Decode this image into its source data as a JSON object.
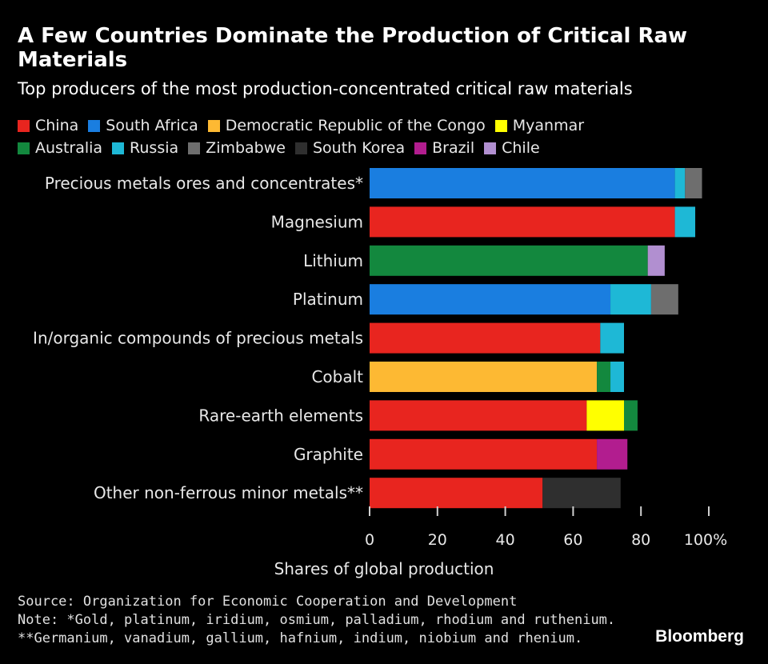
{
  "title": "A Few Countries Dominate the Production of Critical Raw Materials",
  "subtitle": "Top producers of the most production-concentrated critical raw materials",
  "legend": [
    [
      {
        "key": "china",
        "label": "China",
        "color": "#e8251f"
      },
      {
        "key": "south_africa",
        "label": "South Africa",
        "color": "#1a7ee0"
      },
      {
        "key": "drc",
        "label": "Democratic Republic of the Congo",
        "color": "#fdb933"
      },
      {
        "key": "myanmar",
        "label": "Myanmar",
        "color": "#ffff00"
      }
    ],
    [
      {
        "key": "australia",
        "label": "Australia",
        "color": "#13883e"
      },
      {
        "key": "russia",
        "label": "Russia",
        "color": "#1eb8d6"
      },
      {
        "key": "zimbabwe",
        "label": "Zimbabwe",
        "color": "#6e6e6e"
      },
      {
        "key": "south_korea",
        "label": "South Korea",
        "color": "#2f2f2f"
      },
      {
        "key": "brazil",
        "label": "Brazil",
        "color": "#b21d8f"
      },
      {
        "key": "chile",
        "label": "Chile",
        "color": "#b18fd0"
      }
    ]
  ],
  "chart_data": {
    "type": "bar",
    "orientation": "horizontal",
    "stacked": true,
    "xlabel": "Shares of global production",
    "xlim": [
      0,
      100
    ],
    "ticks": [
      "0",
      "20",
      "40",
      "60",
      "80",
      "100%"
    ],
    "tick_values": [
      0,
      20,
      40,
      60,
      80,
      100
    ],
    "categories": [
      "Precious metals ores and concentrates*",
      "Magnesium",
      "Lithium",
      "Platinum",
      "In/organic compounds of precious metals",
      "Cobalt",
      "Rare-earth elements",
      "Graphite",
      "Other non-ferrous minor metals**"
    ],
    "rows": [
      [
        {
          "series": "South Africa",
          "color": "#1a7ee0",
          "value": 90
        },
        {
          "series": "Russia",
          "color": "#1eb8d6",
          "value": 3
        },
        {
          "series": "Zimbabwe",
          "color": "#6e6e6e",
          "value": 5
        }
      ],
      [
        {
          "series": "China",
          "color": "#e8251f",
          "value": 90
        },
        {
          "series": "Russia",
          "color": "#1eb8d6",
          "value": 6
        }
      ],
      [
        {
          "series": "Australia",
          "color": "#13883e",
          "value": 82
        },
        {
          "series": "Chile",
          "color": "#b18fd0",
          "value": 5
        }
      ],
      [
        {
          "series": "South Africa",
          "color": "#1a7ee0",
          "value": 71
        },
        {
          "series": "Russia",
          "color": "#1eb8d6",
          "value": 12
        },
        {
          "series": "Zimbabwe",
          "color": "#6e6e6e",
          "value": 8
        }
      ],
      [
        {
          "series": "China",
          "color": "#e8251f",
          "value": 68
        },
        {
          "series": "Russia",
          "color": "#1eb8d6",
          "value": 7
        }
      ],
      [
        {
          "series": "Democratic Republic of the Congo",
          "color": "#fdb933",
          "value": 67
        },
        {
          "series": "Australia",
          "color": "#13883e",
          "value": 4
        },
        {
          "series": "Russia",
          "color": "#1eb8d6",
          "value": 4
        }
      ],
      [
        {
          "series": "China",
          "color": "#e8251f",
          "value": 64
        },
        {
          "series": "Myanmar",
          "color": "#ffff00",
          "value": 11
        },
        {
          "series": "Australia",
          "color": "#13883e",
          "value": 4
        }
      ],
      [
        {
          "series": "China",
          "color": "#e8251f",
          "value": 67
        },
        {
          "series": "Brazil",
          "color": "#b21d8f",
          "value": 9
        }
      ],
      [
        {
          "series": "China",
          "color": "#e8251f",
          "value": 51
        },
        {
          "series": "South Korea",
          "color": "#2f2f2f",
          "value": 23
        }
      ]
    ]
  },
  "footer": {
    "source": "Source: Organization for Economic Cooperation and Development",
    "note1": "Note: *Gold, platinum, iridium, osmium, palladium, rhodium and ruthenium.",
    "note2": "**Germanium, vanadium, gallium, hafnium, indium, niobium and rhenium."
  },
  "brand": "Bloomberg"
}
